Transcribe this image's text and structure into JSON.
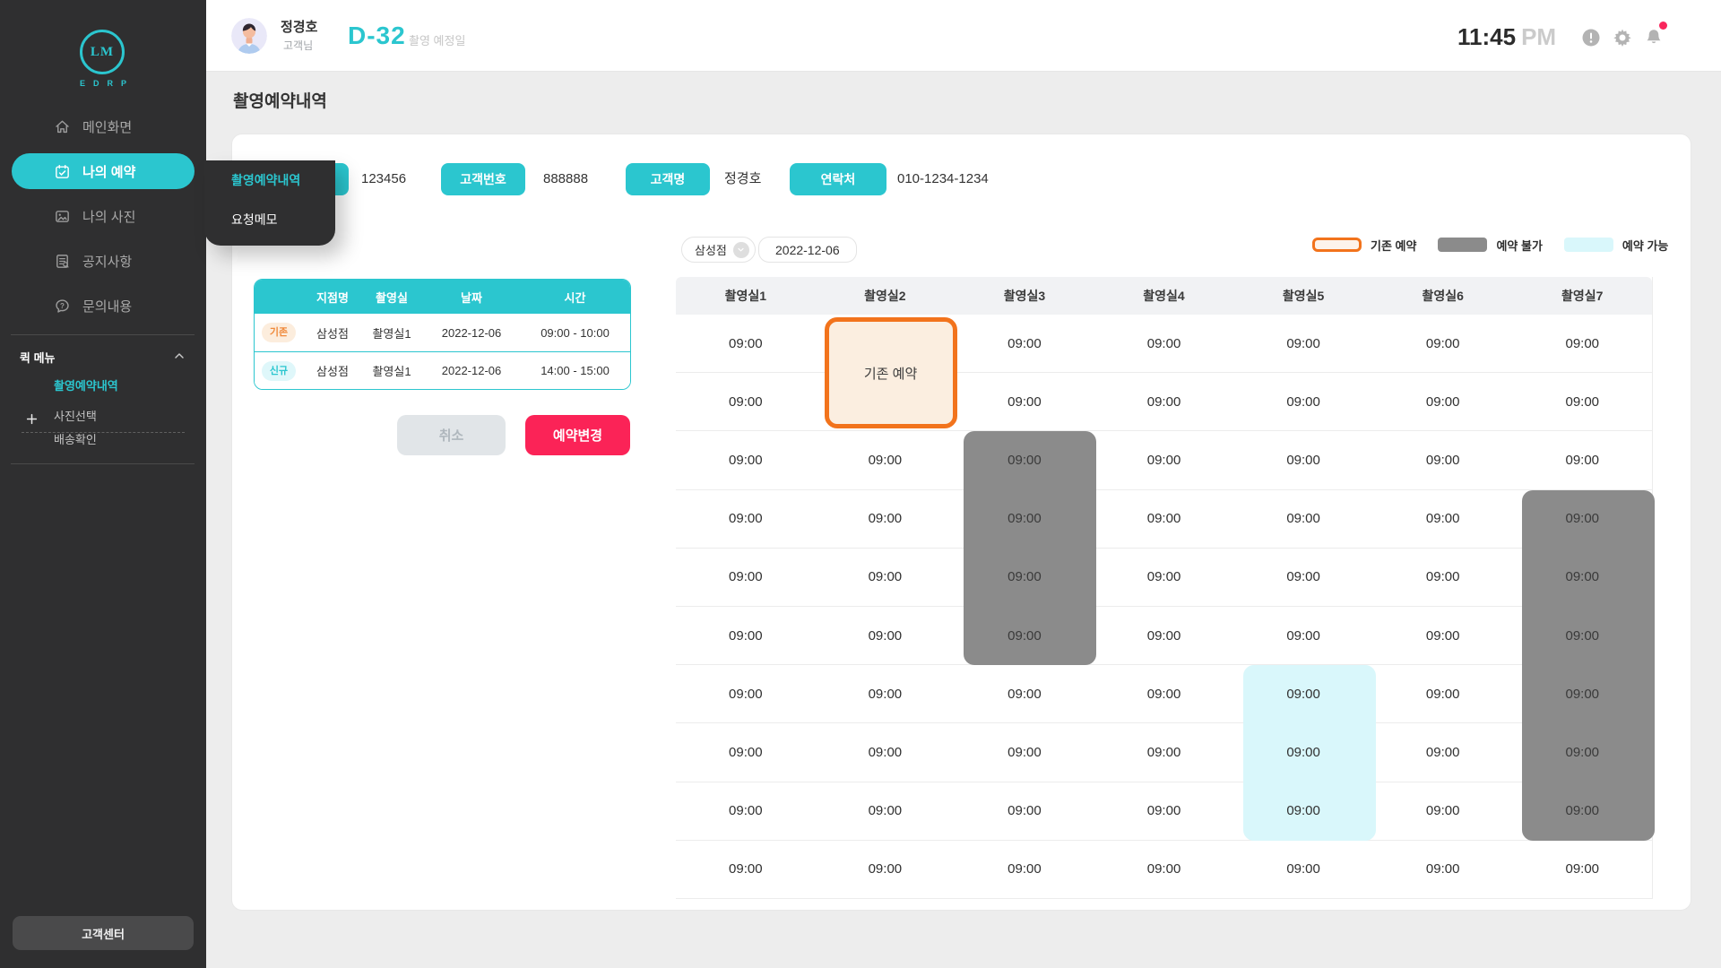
{
  "sidebar": {
    "logo": {
      "monogram": "LM",
      "brand": "EDRP"
    },
    "menu": [
      {
        "key": "main",
        "label": "메인화면",
        "icon": "home-icon",
        "active": false
      },
      {
        "key": "reservation",
        "label": "나의 예약",
        "icon": "calendar-check-icon",
        "active": true
      },
      {
        "key": "photos",
        "label": "나의 사진",
        "icon": "photo-icon",
        "active": false
      },
      {
        "key": "notice",
        "label": "공지사항",
        "icon": "notice-icon",
        "active": false
      },
      {
        "key": "inquiry",
        "label": "문의내용",
        "icon": "chat-question-icon",
        "active": false
      }
    ],
    "quick_menu": {
      "title": "퀵 메뉴",
      "items": [
        {
          "key": "shoot-history",
          "label": "촬영예약내역",
          "highlighted": true,
          "has_plus": false
        },
        {
          "key": "photo-select",
          "label": "사진선택",
          "highlighted": false,
          "has_plus": true
        },
        {
          "key": "delivery-check",
          "label": "배송확인",
          "highlighted": false,
          "has_plus": false
        }
      ]
    },
    "footer_button": "고객센터"
  },
  "header": {
    "user_name": "정경호",
    "user_role": "고객님",
    "dday": "D-32",
    "dday_caption": "촬영 예정일",
    "time": "11:45",
    "meridiem": "PM",
    "has_notification": true
  },
  "flyout": {
    "items": [
      {
        "label": "촬영예약내역",
        "highlighted": true
      },
      {
        "label": "요청메모",
        "highlighted": false
      }
    ]
  },
  "page": {
    "title": "촬영예약내역",
    "info_chips": [
      {
        "label": "",
        "value": "123456"
      },
      {
        "label": "고객번호",
        "value": "888888"
      },
      {
        "label": "고객명",
        "value": "정경호"
      },
      {
        "label": "연락처",
        "value": "010-1234-1234"
      }
    ]
  },
  "reservation_table": {
    "headers": [
      "지점명",
      "촬영실",
      "날짜",
      "시간"
    ],
    "rows": [
      {
        "badge": "기존",
        "type": "existing",
        "branch": "삼성점",
        "room": "촬영실1",
        "date": "2022-12-06",
        "time": "09:00 - 10:00"
      },
      {
        "badge": "신규",
        "type": "new",
        "branch": "삼성점",
        "room": "촬영실1",
        "date": "2022-12-06",
        "time": "14:00 - 15:00"
      }
    ]
  },
  "actions": {
    "cancel": "취소",
    "change": "예약변경"
  },
  "schedule": {
    "branch_select": "삼성점",
    "date": "2022-12-06",
    "legend": [
      {
        "label": "기존 예약",
        "type": "existing"
      },
      {
        "label": "예약 불가",
        "type": "unavailable"
      },
      {
        "label": "예약 가능",
        "type": "available"
      }
    ],
    "columns": [
      "촬영실1",
      "촬영실2",
      "촬영실3",
      "촬영실4",
      "촬영실5",
      "촬영실6",
      "촬영실7"
    ],
    "rows": 10,
    "time_label": "09:00",
    "existing_block": {
      "column": 2,
      "row_start": 1,
      "row_end": 2,
      "label": "기존 예약"
    },
    "unavailable_blocks": [
      {
        "column": 3,
        "row_start": 3,
        "row_end": 6
      },
      {
        "column": 7,
        "row_start": 4,
        "row_end": 9
      }
    ],
    "available_blocks": [
      {
        "column": 5,
        "row_start": 7,
        "row_end": 9
      }
    ]
  },
  "colors": {
    "accent": "#2BC6CF",
    "danger": "#FB2357",
    "existing_border": "#F2731C",
    "existing_fill": "#FBEEE0",
    "unavailable": "#8B8B8B",
    "available": "#D9F7FB",
    "sidebar_bg": "#2F2F30"
  }
}
